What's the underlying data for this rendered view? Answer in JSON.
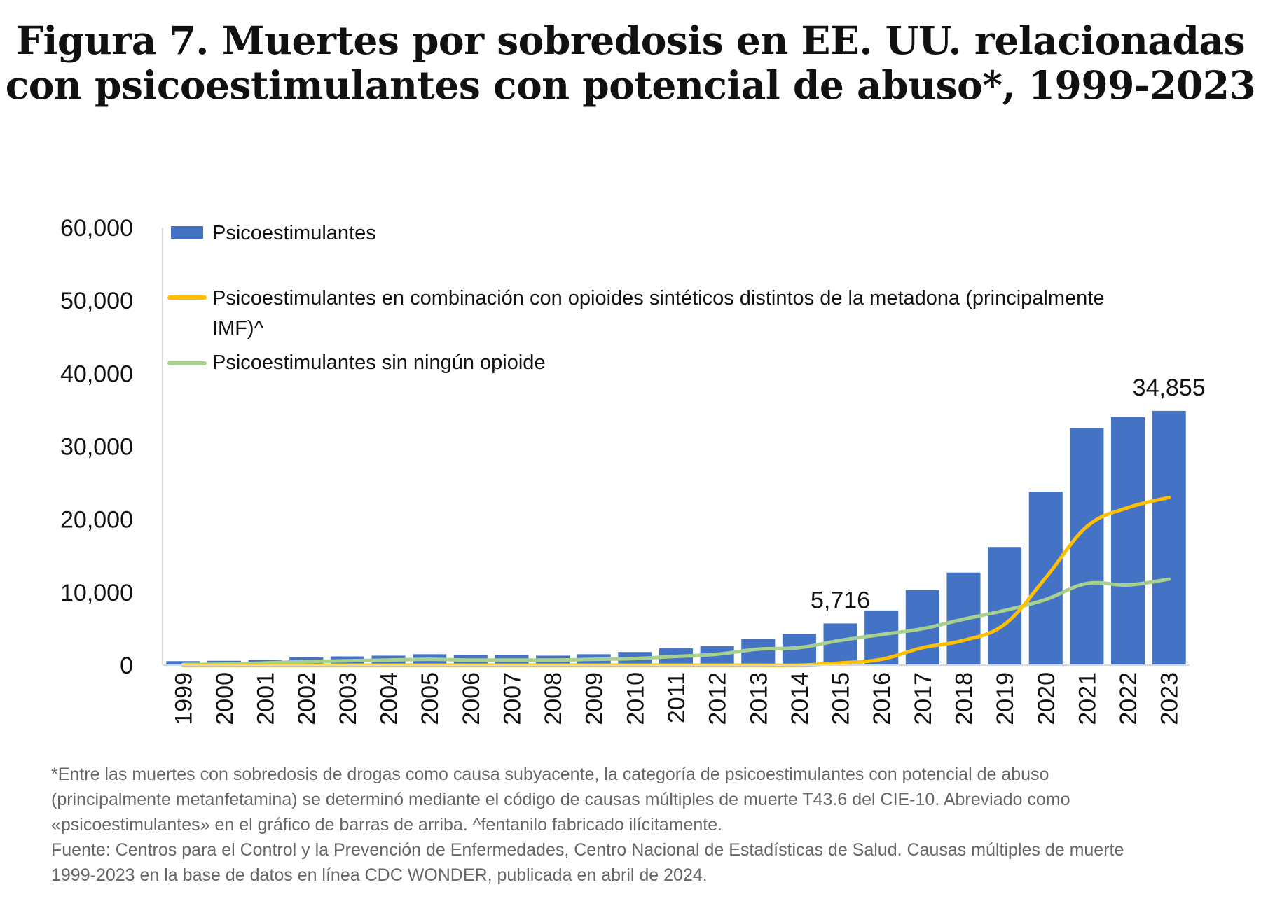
{
  "title": {
    "line1": "Figura 7. Muertes por sobredosis en EE. UU. relacionadas",
    "line2": "con psicoestimulantes con potencial de abuso*, 1999-2023"
  },
  "colors": {
    "bars": "#4472C4",
    "orange": "#FFC000",
    "green": "#A9D18E"
  },
  "chart_data": {
    "type": "bar",
    "categories": [
      "1999",
      "2000",
      "2001",
      "2002",
      "2003",
      "2004",
      "2005",
      "2006",
      "2007",
      "2008",
      "2009",
      "2010",
      "2011",
      "2012",
      "2013",
      "2014",
      "2015",
      "2016",
      "2017",
      "2018",
      "2019",
      "2020",
      "2021",
      "2022",
      "2023"
    ],
    "ylim": [
      0,
      60000
    ],
    "yticks": [
      "0",
      "10,000",
      "20,000",
      "30,000",
      "40,000",
      "50,000",
      "60,000"
    ],
    "ytick_values": [
      0,
      10000,
      20000,
      30000,
      40000,
      50000,
      60000
    ],
    "series": [
      {
        "name": "Psicoestimulantes",
        "kind": "bar",
        "values": [
          550,
          600,
          700,
          1100,
          1200,
          1300,
          1500,
          1400,
          1400,
          1300,
          1500,
          1800,
          2300,
          2600,
          3600,
          4300,
          5716,
          7500,
          10300,
          12700,
          16200,
          23800,
          32500,
          34000,
          34855
        ]
      },
      {
        "name": "Psicoestimulantes en combinación con opioides sintéticos distintos de la metadona (principalmente IMF)^",
        "kind": "line",
        "values": [
          0,
          0,
          0,
          0,
          0,
          0,
          0,
          0,
          0,
          0,
          0,
          0,
          0,
          0,
          0,
          0,
          300,
          800,
          2400,
          3400,
          5600,
          12000,
          19000,
          21600,
          23000
        ]
      },
      {
        "name": "Psicoestimulantes sin ningún opioide",
        "kind": "line",
        "values": [
          100,
          150,
          300,
          500,
          600,
          700,
          800,
          700,
          700,
          700,
          800,
          900,
          1200,
          1500,
          2200,
          2400,
          3400,
          4200,
          5000,
          6300,
          7500,
          9000,
          11200,
          11000,
          11800
        ]
      }
    ],
    "data_labels": {
      "2015": "5,716",
      "2023": "34,855"
    },
    "legend_position": "top-left"
  },
  "legend": {
    "item1": "Psicoestimulantes",
    "item2_line1": "Psicoestimulantes en combinación con opioides sintéticos distintos de la metadona (principalmente",
    "item2_line2": "IMF)^",
    "item3": "Psicoestimulantes sin ningún opioide"
  },
  "footnote": {
    "line1": "*Entre las muertes con sobredosis de drogas como causa subyacente, la categoría de psicoestimulantes con potencial de abuso",
    "line2": "(principalmente metanfetamina) se determinó mediante el código de causas múltiples de muerte T43.6 del CIE-10. Abreviado como",
    "line3": "«psicoestimulantes» en el gráfico de barras de arriba. ^fentanilo fabricado ilícitamente.",
    "line4": "Fuente: Centros para el Control y la Prevención de Enfermedades, Centro Nacional de Estadísticas de Salud. Causas múltiples de muerte",
    "line5": "1999-2023 en la base de datos en línea CDC WONDER, publicada en abril de 2024."
  }
}
